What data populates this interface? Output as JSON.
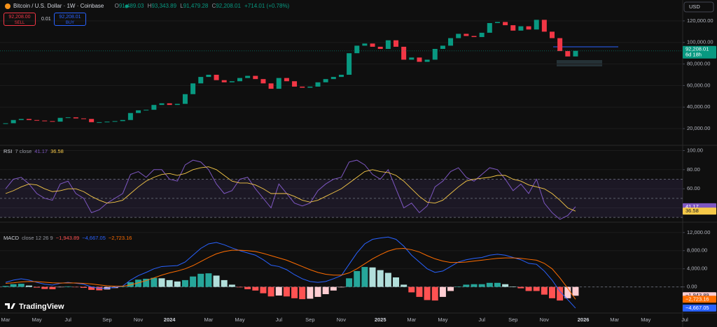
{
  "header": {
    "symbol": "Bitcoin / U.S. Dollar · 1W · Coinbase",
    "ohlc": [
      {
        "key": "O",
        "value": "91,489.03"
      },
      {
        "key": "H",
        "value": "93,343.89"
      },
      {
        "key": "L",
        "value": "91,479.28"
      },
      {
        "key": "C",
        "value": "92,208.01"
      }
    ],
    "change": "+714.01 (+0.78%)",
    "sell_price": "92,208.00",
    "sell": "SELL",
    "spread": "0.01",
    "buy_price": "92,208.01",
    "buy": "BUY",
    "currency": "USD",
    "brand": "TradingView"
  },
  "chart_data": [
    {
      "type": "candlestick",
      "up_color": "#089981",
      "down_color": "#f23645",
      "grid": true,
      "categories": [
        "Mar",
        null,
        null,
        null,
        "May",
        null,
        null,
        null,
        "Jul",
        null,
        null,
        null,
        null,
        "Sep",
        null,
        null,
        null,
        "Nov",
        null,
        null,
        null,
        "2024",
        null,
        null,
        null,
        null,
        "Mar",
        null,
        null,
        null,
        "May",
        null,
        null,
        null,
        null,
        "Jul",
        null,
        null,
        null,
        "Sep",
        null,
        null,
        null,
        "Nov",
        null,
        null,
        null,
        null,
        "2025",
        null,
        null,
        null,
        "Mar",
        null,
        null,
        null,
        "May",
        null,
        null,
        null,
        null,
        "Jul",
        null,
        null,
        null,
        "Sep",
        null,
        null,
        null,
        "Nov",
        null,
        null,
        null,
        null,
        "2026",
        null,
        null,
        null,
        "Mar",
        null,
        null,
        null,
        "May",
        null,
        null,
        null,
        null,
        "Jul"
      ],
      "values": [
        25000,
        28000,
        29000,
        28000,
        27500,
        27000,
        26500,
        30000,
        30500,
        29500,
        29000,
        26000,
        26000,
        26500,
        27000,
        28000,
        34500,
        37000,
        37500,
        42000,
        43500,
        42000,
        43000,
        52000,
        62000,
        68000,
        70000,
        65000,
        63000,
        64000,
        67000,
        69000,
        66000,
        62000,
        57000,
        67000,
        64000,
        59000,
        58000,
        59000,
        63000,
        66000,
        68000,
        70000,
        90000,
        97000,
        99000,
        96000,
        94000,
        102000,
        96000,
        84000,
        86000,
        82000,
        84000,
        94000,
        97000,
        104000,
        108000,
        106000,
        105000,
        109000,
        118000,
        119000,
        116000,
        111000,
        115000,
        112000,
        121000,
        110000,
        104000,
        92000,
        87000,
        92208.01,
        null,
        null,
        null,
        null,
        null,
        null,
        null,
        null,
        null,
        null,
        null,
        null,
        null,
        null
      ],
      "last_label": "92,208.01",
      "countdown": "6d 18h",
      "ylim": [
        4500,
        139400
      ],
      "yticks": [
        {
          "value": 20000,
          "label": "20,000.00"
        },
        {
          "value": 40000,
          "label": "40,000.00"
        },
        {
          "value": 60000,
          "label": "60,000.00"
        },
        {
          "value": 80000,
          "label": "80,000.00"
        },
        {
          "value": 100000,
          "label": "100,000.00"
        },
        {
          "value": 120000,
          "label": "120,000.00"
        }
      ]
    },
    {
      "type": "rsi",
      "title": "RSI",
      "params": "7 close",
      "band": [
        30,
        70
      ],
      "midline": 50,
      "band_color": "#7e57c2",
      "series": [
        {
          "color": "#7e57c2",
          "values": [
            60,
            70,
            72,
            65,
            55,
            50,
            48,
            65,
            68,
            55,
            50,
            35,
            38,
            45,
            50,
            55,
            75,
            78,
            72,
            80,
            80,
            70,
            68,
            85,
            90,
            88,
            80,
            65,
            55,
            58,
            70,
            72,
            60,
            50,
            40,
            65,
            55,
            45,
            42,
            45,
            58,
            65,
            70,
            72,
            88,
            90,
            85,
            75,
            70,
            80,
            60,
            40,
            45,
            35,
            42,
            62,
            68,
            78,
            82,
            72,
            68,
            75,
            82,
            80,
            70,
            58,
            65,
            55,
            70,
            45,
            35,
            28,
            32,
            41.17,
            null,
            null,
            null,
            null,
            null,
            null,
            null,
            null,
            null,
            null,
            null,
            null,
            null,
            null
          ]
        },
        {
          "color": "#f7c948",
          "values": [
            55,
            58,
            62,
            65,
            64,
            60,
            57,
            58,
            60,
            60,
            57,
            52,
            48,
            45,
            46,
            48,
            55,
            62,
            68,
            72,
            75,
            76,
            74,
            76,
            80,
            82,
            83,
            80,
            74,
            68,
            66,
            66,
            64,
            60,
            55,
            55,
            55,
            52,
            48,
            46,
            48,
            52,
            56,
            60,
            66,
            72,
            78,
            80,
            78,
            77,
            74,
            68,
            60,
            52,
            46,
            45,
            48,
            55,
            62,
            68,
            70,
            71,
            72,
            74,
            74,
            70,
            68,
            64,
            62,
            60,
            55,
            48,
            40,
            36.58,
            null,
            null,
            null,
            null,
            null,
            null,
            null,
            null,
            null,
            null,
            null,
            null,
            null,
            null
          ]
        }
      ],
      "ylim": [
        25,
        104
      ],
      "yticks": [
        {
          "value": 40,
          "label": "40.00"
        },
        {
          "value": 60,
          "label": "60.00"
        },
        {
          "value": 80,
          "label": "80.00"
        },
        {
          "value": 100,
          "label": "100.00"
        }
      ]
    },
    {
      "type": "macd",
      "title": "MACD",
      "params": "close 12 26 9",
      "histogram": {
        "colors": [
          "#26a69a",
          "#b2dfdb",
          "#ff5252",
          "#ffcdd2"
        ],
        "last_label": "−1,943.89",
        "values": [
          200,
          600,
          700,
          300,
          -150,
          -450,
          -500,
          -50,
          120,
          -60,
          -200,
          -650,
          -750,
          -550,
          -250,
          50,
          1050,
          1600,
          1800,
          2000,
          1900,
          1500,
          1200,
          1500,
          2300,
          2900,
          3000,
          2500,
          1500,
          500,
          -100,
          -500,
          -800,
          -1400,
          -2100,
          -1900,
          -2100,
          -2500,
          -2700,
          -2600,
          -2200,
          -1600,
          -800,
          -100,
          1900,
          3500,
          4400,
          4300,
          3700,
          3100,
          2100,
          500,
          -1200,
          -2200,
          -2900,
          -3000,
          -2200,
          -900,
          100,
          500,
          600,
          600,
          900,
          900,
          600,
          100,
          -300,
          -900,
          -900,
          -1700,
          -2500,
          -3000,
          -2500,
          -1943.89,
          null,
          null,
          null,
          null,
          null,
          null,
          null,
          null,
          null,
          null,
          null,
          null,
          null,
          null
        ]
      },
      "series": [
        {
          "color": "#2962ff",
          "last_label": "−4,667.05",
          "values": [
            1000,
            1500,
            1800,
            1500,
            1000,
            600,
            400,
            800,
            1000,
            800,
            600,
            0,
            -300,
            -300,
            -100,
            200,
            1500,
            2500,
            3200,
            4000,
            4500,
            4600,
            4700,
            5500,
            7000,
            8500,
            9500,
            9800,
            9300,
            8600,
            8000,
            7500,
            7000,
            6000,
            4800,
            4500,
            3800,
            2700,
            1800,
            1200,
            1000,
            1200,
            1800,
            2500,
            5000,
            7500,
            9500,
            10500,
            10800,
            11000,
            10500,
            9000,
            7000,
            5500,
            4000,
            3200,
            3500,
            4500,
            5500,
            6000,
            6300,
            6500,
            7000,
            7200,
            7000,
            6500,
            6000,
            5200,
            5000,
            3500,
            1500,
            -1000,
            -2800,
            -4667.05,
            null,
            null,
            null,
            null,
            null,
            null,
            null,
            null,
            null,
            null,
            null,
            null,
            null,
            null
          ]
        },
        {
          "color": "#ff6d00",
          "last_label": "−2,723.16",
          "values": [
            800,
            900,
            1100,
            1200,
            1150,
            1050,
            900,
            850,
            880,
            860,
            800,
            650,
            450,
            250,
            150,
            150,
            450,
            900,
            1400,
            2000,
            2600,
            3100,
            3500,
            4000,
            4700,
            5600,
            6500,
            7300,
            7800,
            8100,
            8100,
            8000,
            7800,
            7400,
            6900,
            6400,
            5900,
            5200,
            4500,
            3800,
            3200,
            2800,
            2600,
            2600,
            3100,
            4000,
            5100,
            6200,
            7100,
            7900,
            8400,
            8500,
            8200,
            7700,
            6900,
            6200,
            5700,
            5400,
            5400,
            5500,
            5700,
            5900,
            6100,
            6300,
            6400,
            6400,
            6300,
            6100,
            5900,
            5200,
            4000,
            2000,
            -300,
            -2723.16,
            null,
            null,
            null,
            null,
            null,
            null,
            null,
            null,
            null,
            null,
            null,
            null,
            null,
            null
          ]
        }
      ],
      "ylim": [
        -5760,
        13970
      ],
      "yticks": [
        {
          "value": 0,
          "label": "0.00"
        },
        {
          "value": 4000,
          "label": "4,000.00"
        },
        {
          "value": 8000,
          "label": "8,000.00"
        },
        {
          "value": 12000,
          "label": "12,000.00"
        }
      ]
    }
  ]
}
